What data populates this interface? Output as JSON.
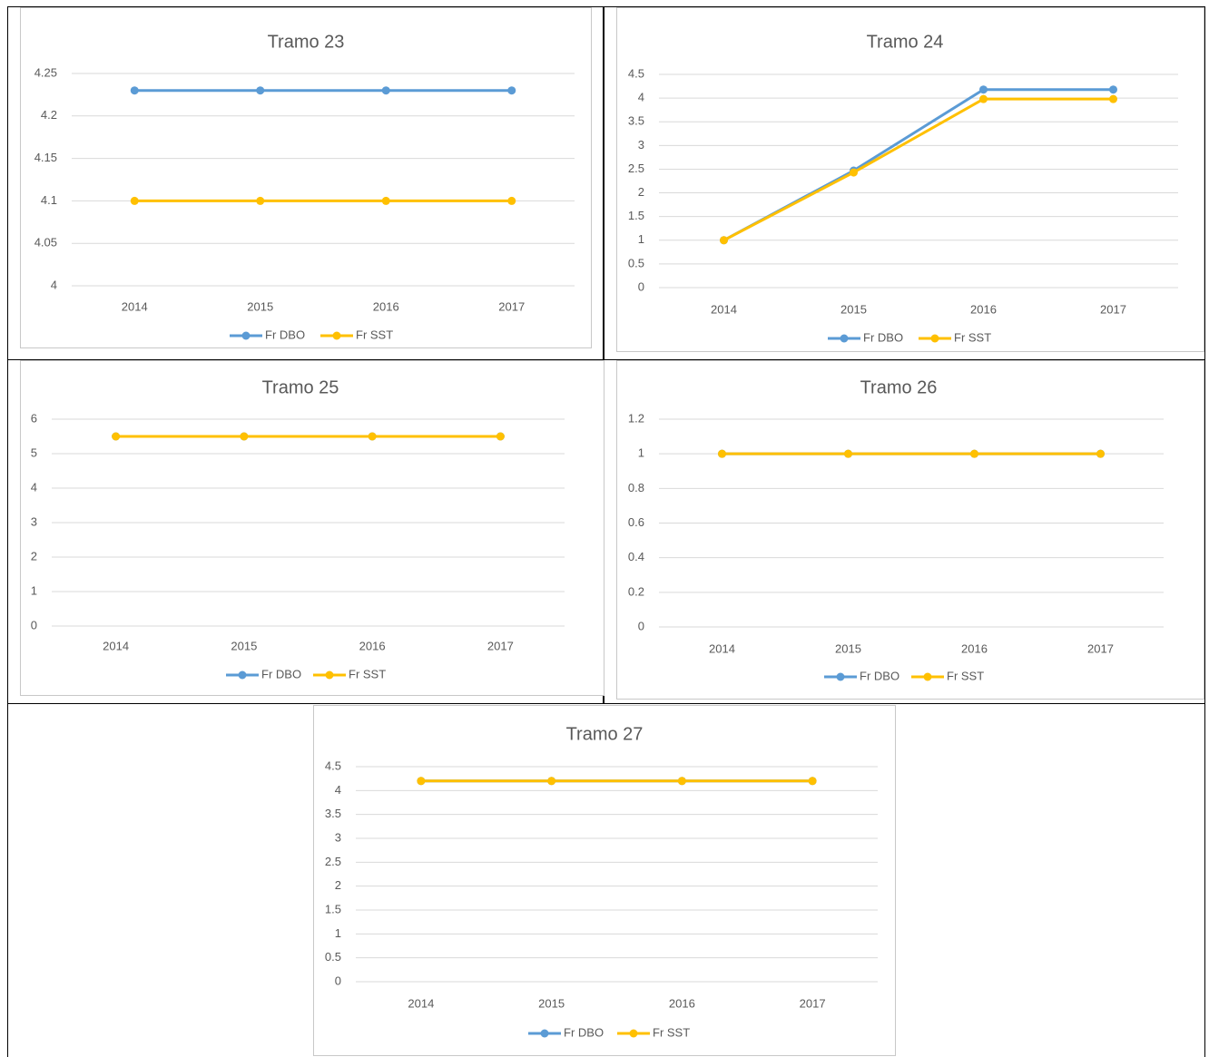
{
  "colors": {
    "dbo": "#5b9bd5",
    "sst": "#ffc000",
    "grid": "#d9d9d9",
    "text": "#595959"
  },
  "chart_data": [
    {
      "type": "line",
      "title": "Tramo 23",
      "categories": [
        "2014",
        "2015",
        "2016",
        "2017"
      ],
      "ylim": [
        4,
        4.25
      ],
      "yticks": [
        "4",
        "4.05",
        "4.1",
        "4.15",
        "4.2",
        "4.25"
      ],
      "grid": true,
      "legend": "bottom",
      "series": [
        {
          "name": "Fr DBO",
          "values": [
            4.23,
            4.23,
            4.23,
            4.23
          ]
        },
        {
          "name": "Fr SST",
          "values": [
            4.1,
            4.1,
            4.1,
            4.1
          ]
        }
      ]
    },
    {
      "type": "line",
      "title": "Tramo 24",
      "categories": [
        "2014",
        "2015",
        "2016",
        "2017"
      ],
      "ylim": [
        0,
        4.5
      ],
      "yticks": [
        "0",
        "0.5",
        "1",
        "1.5",
        "2",
        "2.5",
        "3",
        "3.5",
        "4",
        "4.5"
      ],
      "grid": true,
      "legend": "bottom",
      "series": [
        {
          "name": "Fr DBO",
          "values": [
            1,
            2.47,
            4.18,
            4.18
          ]
        },
        {
          "name": "Fr SST",
          "values": [
            1,
            2.43,
            3.98,
            3.98
          ]
        }
      ]
    },
    {
      "type": "line",
      "title": "Tramo 25",
      "categories": [
        "2014",
        "2015",
        "2016",
        "2017"
      ],
      "ylim": [
        0,
        6
      ],
      "yticks": [
        "0",
        "1",
        "2",
        "3",
        "4",
        "5",
        "6"
      ],
      "grid": true,
      "legend": "bottom",
      "series": [
        {
          "name": "Fr DBO",
          "values": [
            5.5,
            5.5,
            5.5,
            5.5
          ]
        },
        {
          "name": "Fr SST",
          "values": [
            5.5,
            5.5,
            5.5,
            5.5
          ]
        }
      ]
    },
    {
      "type": "line",
      "title": "Tramo 26",
      "categories": [
        "2014",
        "2015",
        "2016",
        "2017"
      ],
      "ylim": [
        0,
        1.2
      ],
      "yticks": [
        "0",
        "0.2",
        "0.4",
        "0.6",
        "0.8",
        "1",
        "1.2"
      ],
      "grid": true,
      "legend": "bottom",
      "series": [
        {
          "name": "Fr DBO",
          "values": [
            1,
            1,
            1,
            1
          ]
        },
        {
          "name": "Fr SST",
          "values": [
            1,
            1,
            1,
            1
          ]
        }
      ]
    },
    {
      "type": "line",
      "title": "Tramo 27",
      "categories": [
        "2014",
        "2015",
        "2016",
        "2017"
      ],
      "ylim": [
        0,
        4.5
      ],
      "yticks": [
        "0",
        "0.5",
        "1",
        "1.5",
        "2",
        "2.5",
        "3",
        "3.5",
        "4",
        "4.5"
      ],
      "grid": true,
      "legend": "bottom",
      "series": [
        {
          "name": "Fr DBO",
          "values": [
            4.2,
            4.2,
            4.2,
            4.2
          ]
        },
        {
          "name": "Fr SST",
          "values": [
            4.2,
            4.2,
            4.2,
            4.2
          ]
        }
      ]
    }
  ]
}
